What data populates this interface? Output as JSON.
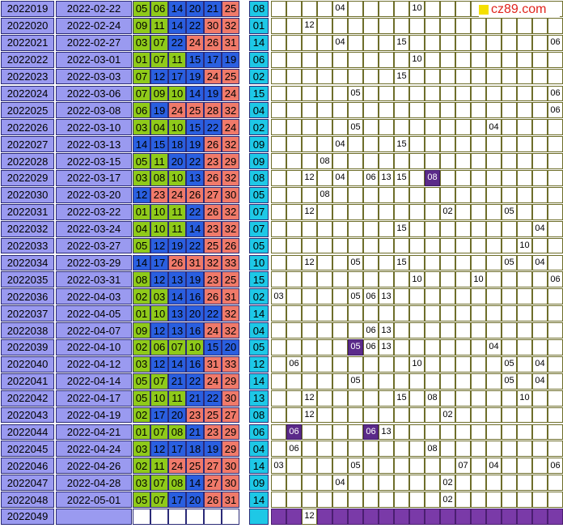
{
  "logo_text": "cz89.com",
  "trend_columns": 19,
  "rows": [
    {
      "issue": "2022019",
      "date": "2022-02-22",
      "reds": [
        "05",
        "06",
        "14",
        "20",
        "21",
        "25"
      ],
      "blue": "08",
      "marks": [
        {
          "c": 4,
          "v": "04"
        },
        {
          "c": 9,
          "v": "10"
        }
      ]
    },
    {
      "issue": "2022020",
      "date": "2022-02-24",
      "reds": [
        "09",
        "11",
        "14",
        "22",
        "30",
        "32"
      ],
      "blue": "01",
      "marks": [
        {
          "c": 2,
          "v": "12"
        }
      ]
    },
    {
      "issue": "2022021",
      "date": "2022-02-27",
      "reds": [
        "03",
        "07",
        "22",
        "24",
        "26",
        "31"
      ],
      "blue": "14",
      "marks": [
        {
          "c": 4,
          "v": "04"
        },
        {
          "c": 8,
          "v": "15"
        },
        {
          "c": 18,
          "v": "06"
        }
      ]
    },
    {
      "issue": "2022022",
      "date": "2022-03-01",
      "reds": [
        "01",
        "07",
        "11",
        "15",
        "17",
        "19"
      ],
      "blue": "06",
      "marks": [
        {
          "c": 9,
          "v": "10"
        }
      ]
    },
    {
      "issue": "2022023",
      "date": "2022-03-03",
      "reds": [
        "07",
        "12",
        "17",
        "19",
        "24",
        "25"
      ],
      "blue": "02",
      "marks": [
        {
          "c": 8,
          "v": "15"
        }
      ]
    },
    {
      "issue": "2022024",
      "date": "2022-03-06",
      "reds": [
        "07",
        "09",
        "10",
        "14",
        "19",
        "24"
      ],
      "blue": "15",
      "marks": [
        {
          "c": 5,
          "v": "05"
        },
        {
          "c": 18,
          "v": "06"
        }
      ]
    },
    {
      "issue": "2022025",
      "date": "2022-03-08",
      "reds": [
        "06",
        "19",
        "24",
        "25",
        "28",
        "32"
      ],
      "blue": "04",
      "marks": [
        {
          "c": 18,
          "v": "06"
        }
      ]
    },
    {
      "issue": "2022026",
      "date": "2022-03-10",
      "reds": [
        "03",
        "04",
        "10",
        "15",
        "22",
        "24"
      ],
      "blue": "02",
      "marks": [
        {
          "c": 5,
          "v": "05"
        },
        {
          "c": 14,
          "v": "04"
        }
      ]
    },
    {
      "issue": "2022027",
      "date": "2022-03-13",
      "reds": [
        "14",
        "15",
        "18",
        "19",
        "26",
        "32"
      ],
      "blue": "09",
      "marks": [
        {
          "c": 4,
          "v": "04"
        },
        {
          "c": 8,
          "v": "15"
        }
      ]
    },
    {
      "issue": "2022028",
      "date": "2022-03-15",
      "reds": [
        "05",
        "11",
        "20",
        "22",
        "23",
        "29"
      ],
      "blue": "09",
      "marks": [
        {
          "c": 3,
          "v": "08"
        }
      ]
    },
    {
      "issue": "2022029",
      "date": "2022-03-17",
      "reds": [
        "03",
        "08",
        "10",
        "13",
        "26",
        "32"
      ],
      "blue": "08",
      "marks": [
        {
          "c": 2,
          "v": "12"
        },
        {
          "c": 4,
          "v": "04"
        },
        {
          "c": 6,
          "v": "06"
        },
        {
          "c": 7,
          "v": "13"
        },
        {
          "c": 8,
          "v": "15"
        },
        {
          "c": 10,
          "v": "08",
          "p": true
        }
      ]
    },
    {
      "issue": "2022030",
      "date": "2022-03-20",
      "reds": [
        "12",
        "23",
        "24",
        "26",
        "27",
        "30"
      ],
      "blue": "05",
      "marks": [
        {
          "c": 3,
          "v": "08"
        }
      ]
    },
    {
      "issue": "2022031",
      "date": "2022-03-22",
      "reds": [
        "01",
        "10",
        "11",
        "22",
        "26",
        "32"
      ],
      "blue": "07",
      "marks": [
        {
          "c": 2,
          "v": "12"
        },
        {
          "c": 11,
          "v": "02"
        },
        {
          "c": 15,
          "v": "05"
        }
      ]
    },
    {
      "issue": "2022032",
      "date": "2022-03-24",
      "reds": [
        "04",
        "10",
        "11",
        "14",
        "23",
        "32"
      ],
      "blue": "07",
      "marks": [
        {
          "c": 8,
          "v": "15"
        },
        {
          "c": 17,
          "v": "04"
        }
      ]
    },
    {
      "issue": "2022033",
      "date": "2022-03-27",
      "reds": [
        "05",
        "12",
        "19",
        "22",
        "25",
        "26"
      ],
      "blue": "05",
      "marks": [
        {
          "c": 16,
          "v": "10"
        }
      ]
    },
    {
      "issue": "2022034",
      "date": "2022-03-29",
      "reds": [
        "14",
        "17",
        "26",
        "31",
        "32",
        "33"
      ],
      "blue": "10",
      "marks": [
        {
          "c": 2,
          "v": "12"
        },
        {
          "c": 5,
          "v": "05"
        },
        {
          "c": 8,
          "v": "15"
        },
        {
          "c": 15,
          "v": "05"
        },
        {
          "c": 17,
          "v": "04"
        }
      ]
    },
    {
      "issue": "2022035",
      "date": "2022-03-31",
      "reds": [
        "08",
        "12",
        "13",
        "19",
        "23",
        "25"
      ],
      "blue": "15",
      "marks": [
        {
          "c": 9,
          "v": "10"
        },
        {
          "c": 13,
          "v": "10"
        },
        {
          "c": 18,
          "v": "06"
        }
      ]
    },
    {
      "issue": "2022036",
      "date": "2022-04-03",
      "reds": [
        "02",
        "03",
        "14",
        "16",
        "26",
        "31"
      ],
      "blue": "02",
      "marks": [
        {
          "c": 0,
          "v": "03"
        },
        {
          "c": 5,
          "v": "05"
        },
        {
          "c": 6,
          "v": "06"
        },
        {
          "c": 7,
          "v": "13"
        }
      ]
    },
    {
      "issue": "2022037",
      "date": "2022-04-05",
      "reds": [
        "01",
        "10",
        "13",
        "20",
        "22",
        "32"
      ],
      "blue": "14",
      "marks": []
    },
    {
      "issue": "2022038",
      "date": "2022-04-07",
      "reds": [
        "09",
        "12",
        "13",
        "16",
        "24",
        "32"
      ],
      "blue": "04",
      "marks": [
        {
          "c": 6,
          "v": "06"
        },
        {
          "c": 7,
          "v": "13"
        }
      ]
    },
    {
      "issue": "2022039",
      "date": "2022-04-10",
      "reds": [
        "02",
        "06",
        "07",
        "10",
        "15",
        "20"
      ],
      "blue": "05",
      "marks": [
        {
          "c": 5,
          "v": "05",
          "p": true
        },
        {
          "c": 6,
          "v": "06"
        },
        {
          "c": 7,
          "v": "13"
        },
        {
          "c": 14,
          "v": "04"
        }
      ]
    },
    {
      "issue": "2022040",
      "date": "2022-04-12",
      "reds": [
        "03",
        "12",
        "14",
        "16",
        "31",
        "33"
      ],
      "blue": "12",
      "marks": [
        {
          "c": 1,
          "v": "06"
        },
        {
          "c": 9,
          "v": "10"
        },
        {
          "c": 15,
          "v": "05"
        },
        {
          "c": 17,
          "v": "04"
        }
      ]
    },
    {
      "issue": "2022041",
      "date": "2022-04-14",
      "reds": [
        "05",
        "07",
        "21",
        "22",
        "24",
        "29"
      ],
      "blue": "14",
      "marks": [
        {
          "c": 5,
          "v": "05"
        },
        {
          "c": 15,
          "v": "05"
        },
        {
          "c": 17,
          "v": "04"
        }
      ]
    },
    {
      "issue": "2022042",
      "date": "2022-04-17",
      "reds": [
        "05",
        "10",
        "11",
        "21",
        "22",
        "30"
      ],
      "blue": "13",
      "marks": [
        {
          "c": 2,
          "v": "12"
        },
        {
          "c": 8,
          "v": "15"
        },
        {
          "c": 10,
          "v": "08"
        },
        {
          "c": 16,
          "v": "10"
        }
      ]
    },
    {
      "issue": "2022043",
      "date": "2022-04-19",
      "reds": [
        "02",
        "17",
        "20",
        "23",
        "25",
        "27"
      ],
      "blue": "08",
      "marks": [
        {
          "c": 2,
          "v": "12"
        },
        {
          "c": 11,
          "v": "02"
        }
      ]
    },
    {
      "issue": "2022044",
      "date": "2022-04-21",
      "reds": [
        "01",
        "07",
        "08",
        "21",
        "23",
        "29"
      ],
      "blue": "06",
      "marks": [
        {
          "c": 1,
          "v": "06",
          "p": true
        },
        {
          "c": 6,
          "v": "06",
          "p": true
        },
        {
          "c": 7,
          "v": "13"
        }
      ]
    },
    {
      "issue": "2022045",
      "date": "2022-04-24",
      "reds": [
        "03",
        "12",
        "17",
        "18",
        "19",
        "29"
      ],
      "blue": "04",
      "marks": [
        {
          "c": 1,
          "v": "06"
        },
        {
          "c": 10,
          "v": "08"
        }
      ]
    },
    {
      "issue": "2022046",
      "date": "2022-04-26",
      "reds": [
        "02",
        "11",
        "24",
        "25",
        "27",
        "30"
      ],
      "blue": "14",
      "marks": [
        {
          "c": 0,
          "v": "03"
        },
        {
          "c": 5,
          "v": "05"
        },
        {
          "c": 12,
          "v": "07"
        },
        {
          "c": 14,
          "v": "04"
        },
        {
          "c": 18,
          "v": "06"
        }
      ]
    },
    {
      "issue": "2022047",
      "date": "2022-04-28",
      "reds": [
        "03",
        "07",
        "08",
        "14",
        "27",
        "30"
      ],
      "blue": "09",
      "marks": [
        {
          "c": 4,
          "v": "04"
        },
        {
          "c": 11,
          "v": "02"
        }
      ]
    },
    {
      "issue": "2022048",
      "date": "2022-05-01",
      "reds": [
        "05",
        "07",
        "17",
        "20",
        "26",
        "31"
      ],
      "blue": "14",
      "marks": [
        {
          "c": 11,
          "v": "02"
        }
      ]
    }
  ],
  "footer": {
    "issue": "2022049",
    "marks": [
      {
        "c": 2,
        "v": "12"
      }
    ]
  }
}
